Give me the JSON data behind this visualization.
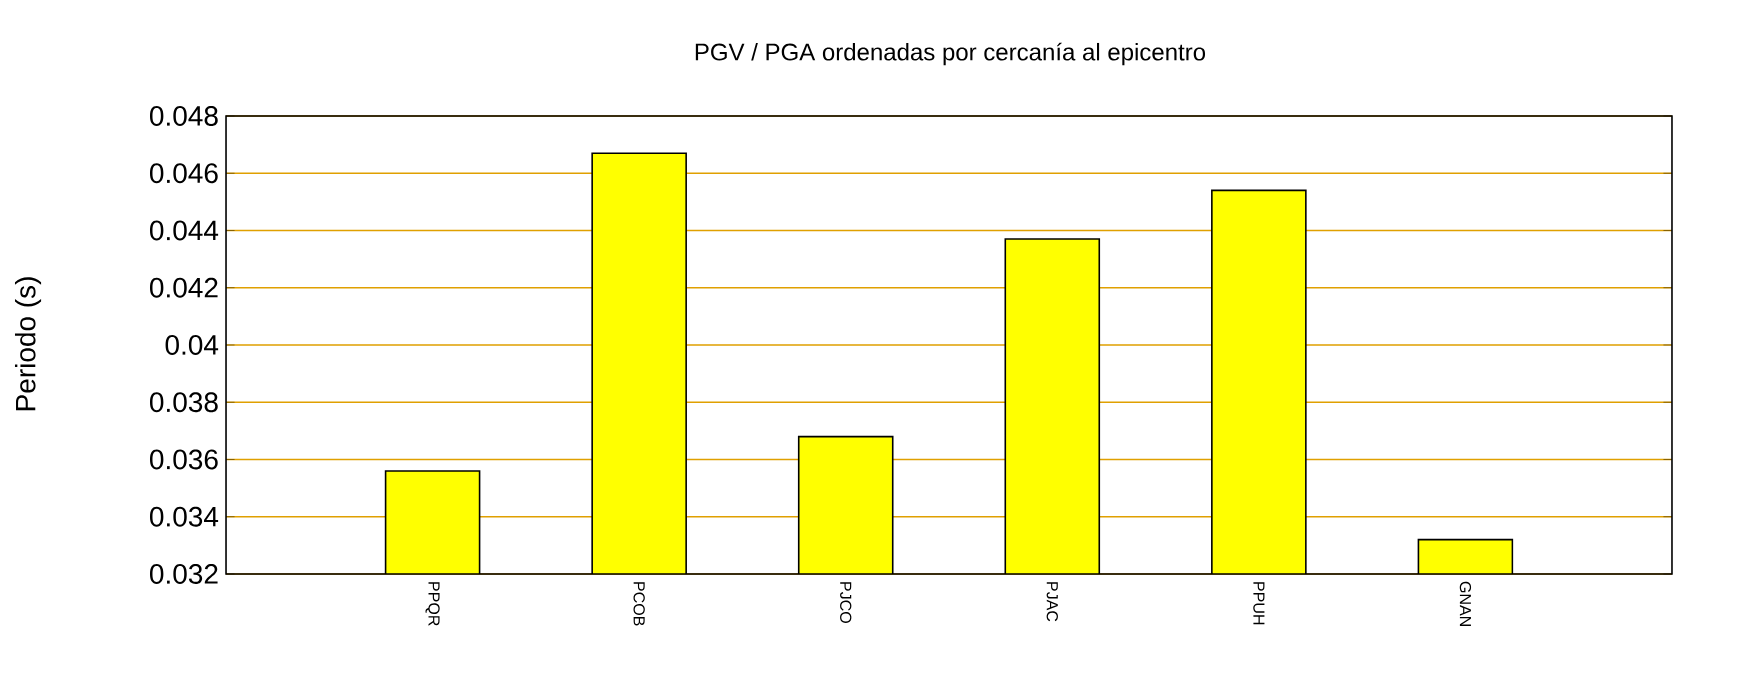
{
  "chart_data": {
    "type": "bar",
    "title": "PGV / PGA ordenadas por cercanía al epicentro",
    "ylabel": "Periodo (s)",
    "categories": [
      "PPQR",
      "PCOB",
      "PJCO",
      "PJAC",
      "PPUH",
      "GNAN"
    ],
    "values": [
      0.0356,
      0.0467,
      0.0368,
      0.0437,
      0.0454,
      0.0332
    ],
    "color": "#ffff00",
    "ylim": [
      0.032,
      0.048
    ],
    "yticks": [
      0.032,
      0.034,
      0.036,
      0.038,
      0.04,
      0.042,
      0.044,
      0.046,
      0.048
    ],
    "grid": "y"
  }
}
